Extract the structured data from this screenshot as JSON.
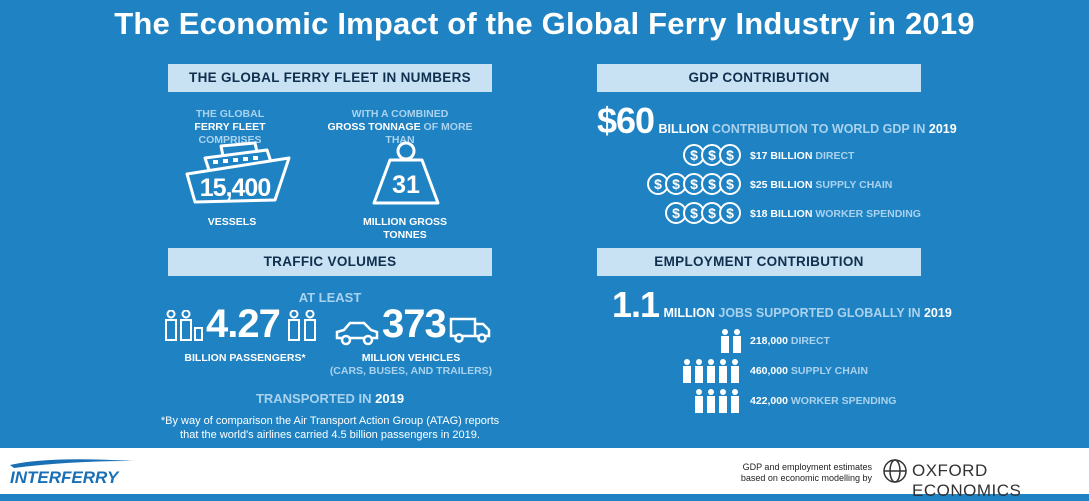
{
  "title": "The Economic Impact of the Global Ferry Industry in 2019",
  "fleet": {
    "header": "THE GLOBAL FERRY FLEET IN NUMBERS",
    "vessels_caption_1": "THE GLOBAL",
    "vessels_caption_2a": "FERRY FLEET",
    "vessels_caption_2b": " COMPRISES",
    "vessels_value": "15,400",
    "vessels_label": "VESSELS",
    "tonnage_caption_1": "WITH A COMBINED",
    "tonnage_caption_2a": "GROSS TONNAGE",
    "tonnage_caption_2b": " OF MORE THAN",
    "tonnage_value": "31",
    "tonnage_label": "MILLION GROSS TONNES"
  },
  "traffic": {
    "header": "TRAFFIC VOLUMES",
    "at_least": "AT LEAST",
    "passengers_value": "4.27",
    "passengers_label": "BILLION PASSENGERS*",
    "vehicles_value": "373",
    "vehicles_label": "MILLION VEHICLES",
    "vehicles_sub": "(CARS, BUSES, AND TRAILERS)",
    "transported_a": "TRANSPORTED IN ",
    "transported_b": "2019",
    "footnote_1": "*By way of comparison the Air Transport Action Group (ATAG) reports",
    "footnote_2": "that the world's airlines carried 4.5 billion passengers in 2019."
  },
  "gdp": {
    "header": "GDP  CONTRIBUTION",
    "value": "$60",
    "unit": "BILLION",
    "text": " CONTRIBUTION TO WORLD GDP IN ",
    "year": "2019",
    "rows": [
      {
        "amount": "$17 BILLION",
        "label": " DIRECT",
        "coins": 3
      },
      {
        "amount": "$25 BILLION",
        "label": " SUPPLY CHAIN",
        "coins": 5
      },
      {
        "amount": "$18 BILLION",
        "label": " WORKER SPENDING",
        "coins": 4
      }
    ]
  },
  "employment": {
    "header": "EMPLOYMENT CONTRIBUTION",
    "value": "1.1",
    "unit": "MILLION",
    "text": " JOBS SUPPORTED GLOBALLY IN ",
    "year": "2019",
    "rows": [
      {
        "amount": "218,000",
        "label": " DIRECT",
        "figures": 2
      },
      {
        "amount": "460,000",
        "label": " SUPPLY CHAIN",
        "figures": 5
      },
      {
        "amount": "422,000",
        "label": " WORKER SPENDING",
        "figures": 4
      }
    ]
  },
  "footer": {
    "logo_left": "INTERFERRY",
    "note_1": "GDP and employment estimates",
    "note_2": "based on economic modelling by",
    "logo_right": "OXFORD ECONOMICS"
  },
  "colors": {
    "background": "#1f83c3",
    "band": "#c9e2f3",
    "light_text": "#a9d2ee",
    "logo_blue": "#1a6fb5"
  }
}
